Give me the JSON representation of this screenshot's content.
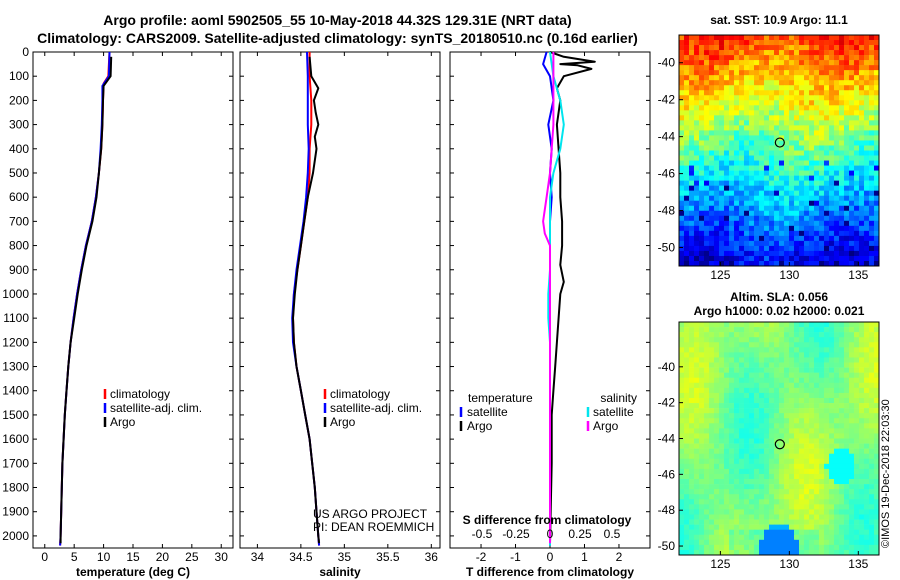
{
  "header": {
    "title_line1": "Argo profile: aoml 5902505_55 10-May-2018 44.32S 129.31E (NRT data)",
    "title_line2": "Climatology: CARS2009. Satellite-adjusted climatology: synTS_20180510.nc (0.16d earlier)"
  },
  "stamp": "©IMOS 19-Dec-2018 22:03:30",
  "colors": {
    "climatology": "#ff0000",
    "satellite": "#0000ff",
    "argo": "#000000",
    "s_satellite": "#00e5ee",
    "s_argo": "#ff00ff"
  },
  "chart_data": [
    {
      "type": "line",
      "xlabel": "temperature (deg C)",
      "xlim": [
        -2,
        32
      ],
      "xticks": [
        0,
        5,
        10,
        15,
        20,
        25,
        30
      ],
      "ylim": [
        0,
        2050
      ],
      "yticks": [
        0,
        100,
        200,
        300,
        400,
        500,
        600,
        700,
        800,
        900,
        1000,
        1100,
        1200,
        1300,
        1400,
        1500,
        1600,
        1700,
        1800,
        1900,
        2000
      ],
      "legend": [
        "climatology",
        "satellite-adj. clim.",
        "Argo"
      ],
      "series": [
        {
          "name": "climatology",
          "color": "#ff0000",
          "points": [
            [
              11,
              0
            ],
            [
              10.8,
              100
            ],
            [
              10,
              130
            ],
            [
              9.9,
              200
            ],
            [
              9.8,
              300
            ],
            [
              9.6,
              400
            ],
            [
              9.2,
              500
            ],
            [
              8.7,
              600
            ],
            [
              8.0,
              700
            ],
            [
              7.0,
              800
            ],
            [
              6.2,
              900
            ],
            [
              5.5,
              1000
            ],
            [
              4.9,
              1100
            ],
            [
              4.4,
              1200
            ],
            [
              4.0,
              1300
            ],
            [
              3.7,
              1400
            ],
            [
              3.4,
              1500
            ],
            [
              3.2,
              1600
            ],
            [
              3.0,
              1700
            ],
            [
              2.9,
              1800
            ],
            [
              2.8,
              1900
            ],
            [
              2.7,
              2000
            ],
            [
              2.6,
              2040
            ]
          ]
        },
        {
          "name": "satellite-adj. clim.",
          "color": "#0000ff",
          "points": [
            [
              11,
              0
            ],
            [
              10.9,
              100
            ],
            [
              9.8,
              140
            ],
            [
              9.8,
              200
            ],
            [
              9.7,
              300
            ],
            [
              9.5,
              400
            ],
            [
              9.2,
              500
            ],
            [
              8.7,
              600
            ],
            [
              8.0,
              700
            ],
            [
              7.0,
              800
            ],
            [
              6.2,
              900
            ],
            [
              5.5,
              1000
            ],
            [
              4.9,
              1100
            ],
            [
              4.4,
              1200
            ],
            [
              4.0,
              1300
            ],
            [
              3.7,
              1400
            ],
            [
              3.4,
              1500
            ],
            [
              3.2,
              1600
            ],
            [
              3.0,
              1700
            ],
            [
              2.9,
              1800
            ],
            [
              2.8,
              1900
            ],
            [
              2.7,
              2000
            ],
            [
              2.6,
              2040
            ]
          ]
        },
        {
          "name": "Argo",
          "color": "#000000",
          "points": [
            [
              11.3,
              20
            ],
            [
              11.2,
              100
            ],
            [
              10.0,
              140
            ],
            [
              9.9,
              200
            ],
            [
              9.8,
              300
            ],
            [
              9.6,
              400
            ],
            [
              9.2,
              500
            ],
            [
              8.8,
              600
            ],
            [
              8.1,
              700
            ],
            [
              7.1,
              800
            ],
            [
              6.3,
              900
            ],
            [
              5.6,
              1000
            ],
            [
              5.0,
              1100
            ],
            [
              4.4,
              1200
            ],
            [
              4.0,
              1300
            ],
            [
              3.7,
              1400
            ],
            [
              3.4,
              1500
            ],
            [
              3.2,
              1600
            ],
            [
              3.0,
              1700
            ],
            [
              2.9,
              1800
            ],
            [
              2.8,
              1900
            ],
            [
              2.7,
              2000
            ],
            [
              2.7,
              2030
            ]
          ]
        }
      ]
    },
    {
      "type": "line",
      "xlabel": "salinity",
      "xlim": [
        33.8,
        36.1
      ],
      "xticks": [
        34,
        34.5,
        35,
        35.5,
        36
      ],
      "ylim": [
        0,
        2050
      ],
      "legend": [
        "climatology",
        "satellite-adj. clim.",
        "Argo"
      ],
      "annotation": [
        "US ARGO PROJECT",
        "PI: DEAN ROEMMICH"
      ],
      "series": [
        {
          "name": "climatology",
          "color": "#ff0000",
          "points": [
            [
              34.6,
              0
            ],
            [
              34.6,
              100
            ],
            [
              34.62,
              200
            ],
            [
              34.62,
              300
            ],
            [
              34.6,
              400
            ],
            [
              34.6,
              500
            ],
            [
              34.58,
              600
            ],
            [
              34.54,
              700
            ],
            [
              34.5,
              800
            ],
            [
              34.46,
              900
            ],
            [
              34.42,
              1000
            ],
            [
              34.41,
              1100
            ],
            [
              34.42,
              1200
            ],
            [
              34.45,
              1300
            ],
            [
              34.5,
              1400
            ],
            [
              34.55,
              1500
            ],
            [
              34.6,
              1600
            ],
            [
              34.63,
              1700
            ],
            [
              34.66,
              1800
            ],
            [
              34.68,
              1900
            ],
            [
              34.7,
              2000
            ],
            [
              34.71,
              2040
            ]
          ]
        },
        {
          "name": "satellite-adj. clim.",
          "color": "#0000ff",
          "points": [
            [
              34.57,
              0
            ],
            [
              34.58,
              100
            ],
            [
              34.58,
              200
            ],
            [
              34.58,
              300
            ],
            [
              34.59,
              400
            ],
            [
              34.58,
              500
            ],
            [
              34.56,
              600
            ],
            [
              34.53,
              700
            ],
            [
              34.49,
              800
            ],
            [
              34.45,
              900
            ],
            [
              34.42,
              1000
            ],
            [
              34.4,
              1100
            ],
            [
              34.41,
              1200
            ],
            [
              34.45,
              1300
            ],
            [
              34.5,
              1400
            ],
            [
              34.55,
              1500
            ],
            [
              34.6,
              1600
            ],
            [
              34.63,
              1700
            ],
            [
              34.66,
              1800
            ],
            [
              34.68,
              1900
            ],
            [
              34.7,
              2000
            ],
            [
              34.71,
              2040
            ]
          ]
        },
        {
          "name": "Argo",
          "color": "#000000",
          "points": [
            [
              34.6,
              20
            ],
            [
              34.62,
              100
            ],
            [
              34.7,
              150
            ],
            [
              34.65,
              200
            ],
            [
              34.67,
              250
            ],
            [
              34.7,
              300
            ],
            [
              34.66,
              350
            ],
            [
              34.68,
              400
            ],
            [
              34.64,
              500
            ],
            [
              34.58,
              600
            ],
            [
              34.54,
              700
            ],
            [
              34.5,
              800
            ],
            [
              34.46,
              900
            ],
            [
              34.43,
              1000
            ],
            [
              34.41,
              1100
            ],
            [
              34.42,
              1200
            ],
            [
              34.45,
              1300
            ],
            [
              34.5,
              1400
            ],
            [
              34.55,
              1500
            ],
            [
              34.6,
              1600
            ],
            [
              34.63,
              1700
            ],
            [
              34.66,
              1800
            ],
            [
              34.68,
              1900
            ],
            [
              34.7,
              2000
            ],
            [
              34.71,
              2030
            ]
          ]
        }
      ]
    },
    {
      "type": "line",
      "xlabel": "T difference from climatology",
      "xlabel2": "S difference from climatology",
      "xlim": [
        -2.9,
        2.9
      ],
      "xticks": [
        -2,
        -1,
        0,
        1,
        2
      ],
      "xticks2": [
        "-0.5",
        "-0.25",
        "0",
        "0.25",
        "0.5"
      ],
      "ylim": [
        0,
        2050
      ],
      "legend_temperature": [
        "temperature",
        "satellite",
        "Argo"
      ],
      "legend_salinity": [
        "salinity",
        "satellite",
        "Argo"
      ],
      "series": [
        {
          "name": "satellite",
          "color": "#0000ff",
          "points": [
            [
              -0.1,
              0
            ],
            [
              -0.2,
              50
            ],
            [
              0,
              100
            ],
            [
              0.1,
              200
            ],
            [
              -0.05,
              300
            ],
            [
              0.05,
              400
            ],
            [
              0,
              500
            ],
            [
              0.05,
              600
            ],
            [
              0,
              700
            ],
            [
              0,
              800
            ],
            [
              0,
              900
            ],
            [
              0,
              1000
            ],
            [
              0,
              1100
            ],
            [
              0,
              1200
            ],
            [
              0,
              1300
            ],
            [
              0,
              1400
            ],
            [
              0,
              1500
            ],
            [
              0,
              1700
            ],
            [
              0,
              1900
            ],
            [
              0,
              2040
            ]
          ]
        },
        {
          "name": "Argo",
          "color": "#000000",
          "points": [
            [
              0,
              0
            ],
            [
              0.4,
              20
            ],
            [
              1.3,
              40
            ],
            [
              0.3,
              50
            ],
            [
              0.8,
              55
            ],
            [
              1.2,
              70
            ],
            [
              0.4,
              100
            ],
            [
              0.2,
              150
            ],
            [
              0.3,
              200
            ],
            [
              0.2,
              300
            ],
            [
              0.25,
              400
            ],
            [
              0.3,
              500
            ],
            [
              0.3,
              600
            ],
            [
              0.35,
              700
            ],
            [
              0.35,
              800
            ],
            [
              0.3,
              880
            ],
            [
              0.4,
              950
            ],
            [
              0.3,
              1000
            ],
            [
              0.25,
              1100
            ],
            [
              0.2,
              1200
            ],
            [
              0.15,
              1300
            ],
            [
              0.1,
              1400
            ],
            [
              0.05,
              1500
            ],
            [
              0.05,
              1700
            ],
            [
              0,
              2030
            ]
          ]
        },
        {
          "name": "satellite",
          "color": "#00e5ee",
          "points": [
            [
              0,
              0
            ],
            [
              0.1,
              100
            ],
            [
              0.3,
              200
            ],
            [
              0.4,
              300
            ],
            [
              0.3,
              400
            ],
            [
              0.1,
              500
            ],
            [
              0,
              600
            ],
            [
              0,
              700
            ],
            [
              0,
              800
            ],
            [
              0,
              900
            ],
            [
              -0.05,
              1000
            ],
            [
              -0.05,
              1100
            ],
            [
              0,
              1200
            ],
            [
              0,
              1300
            ],
            [
              0,
              1500
            ],
            [
              0,
              1700
            ],
            [
              0,
              2040
            ]
          ]
        },
        {
          "name": "Argo",
          "color": "#ff00ff",
          "points": [
            [
              0.1,
              0
            ],
            [
              0.1,
              100
            ],
            [
              0.1,
              200
            ],
            [
              0.1,
              300
            ],
            [
              0.05,
              400
            ],
            [
              0,
              500
            ],
            [
              -0.1,
              600
            ],
            [
              -0.2,
              700
            ],
            [
              -0.15,
              750
            ],
            [
              0,
              800
            ],
            [
              0,
              900
            ],
            [
              0,
              1000
            ],
            [
              0,
              1200
            ],
            [
              0,
              1400
            ],
            [
              0,
              1600
            ],
            [
              0,
              2030
            ]
          ]
        }
      ]
    },
    {
      "type": "heatmap",
      "title": "sat. SST: 10.9 Argo: 11.1",
      "xlim": [
        122,
        136.5
      ],
      "ylim": [
        -51,
        -38.5
      ],
      "xticks": [
        125,
        130,
        135
      ],
      "yticks": [
        -40,
        -42,
        -44,
        -46,
        -48,
        -50
      ],
      "marker": {
        "lon": 129.31,
        "lat": -44.32
      }
    },
    {
      "type": "heatmap",
      "title": "Altim. SLA: 0.056",
      "subtitle": "Argo h1000: 0.02 h2000: 0.021",
      "xlim": [
        122,
        136.5
      ],
      "ylim": [
        -50.5,
        -37.5
      ],
      "xticks": [
        125,
        130,
        135
      ],
      "yticks": [
        -40,
        -42,
        -44,
        -46,
        -48,
        -50
      ],
      "marker": {
        "lon": 129.31,
        "lat": -44.32
      }
    }
  ]
}
